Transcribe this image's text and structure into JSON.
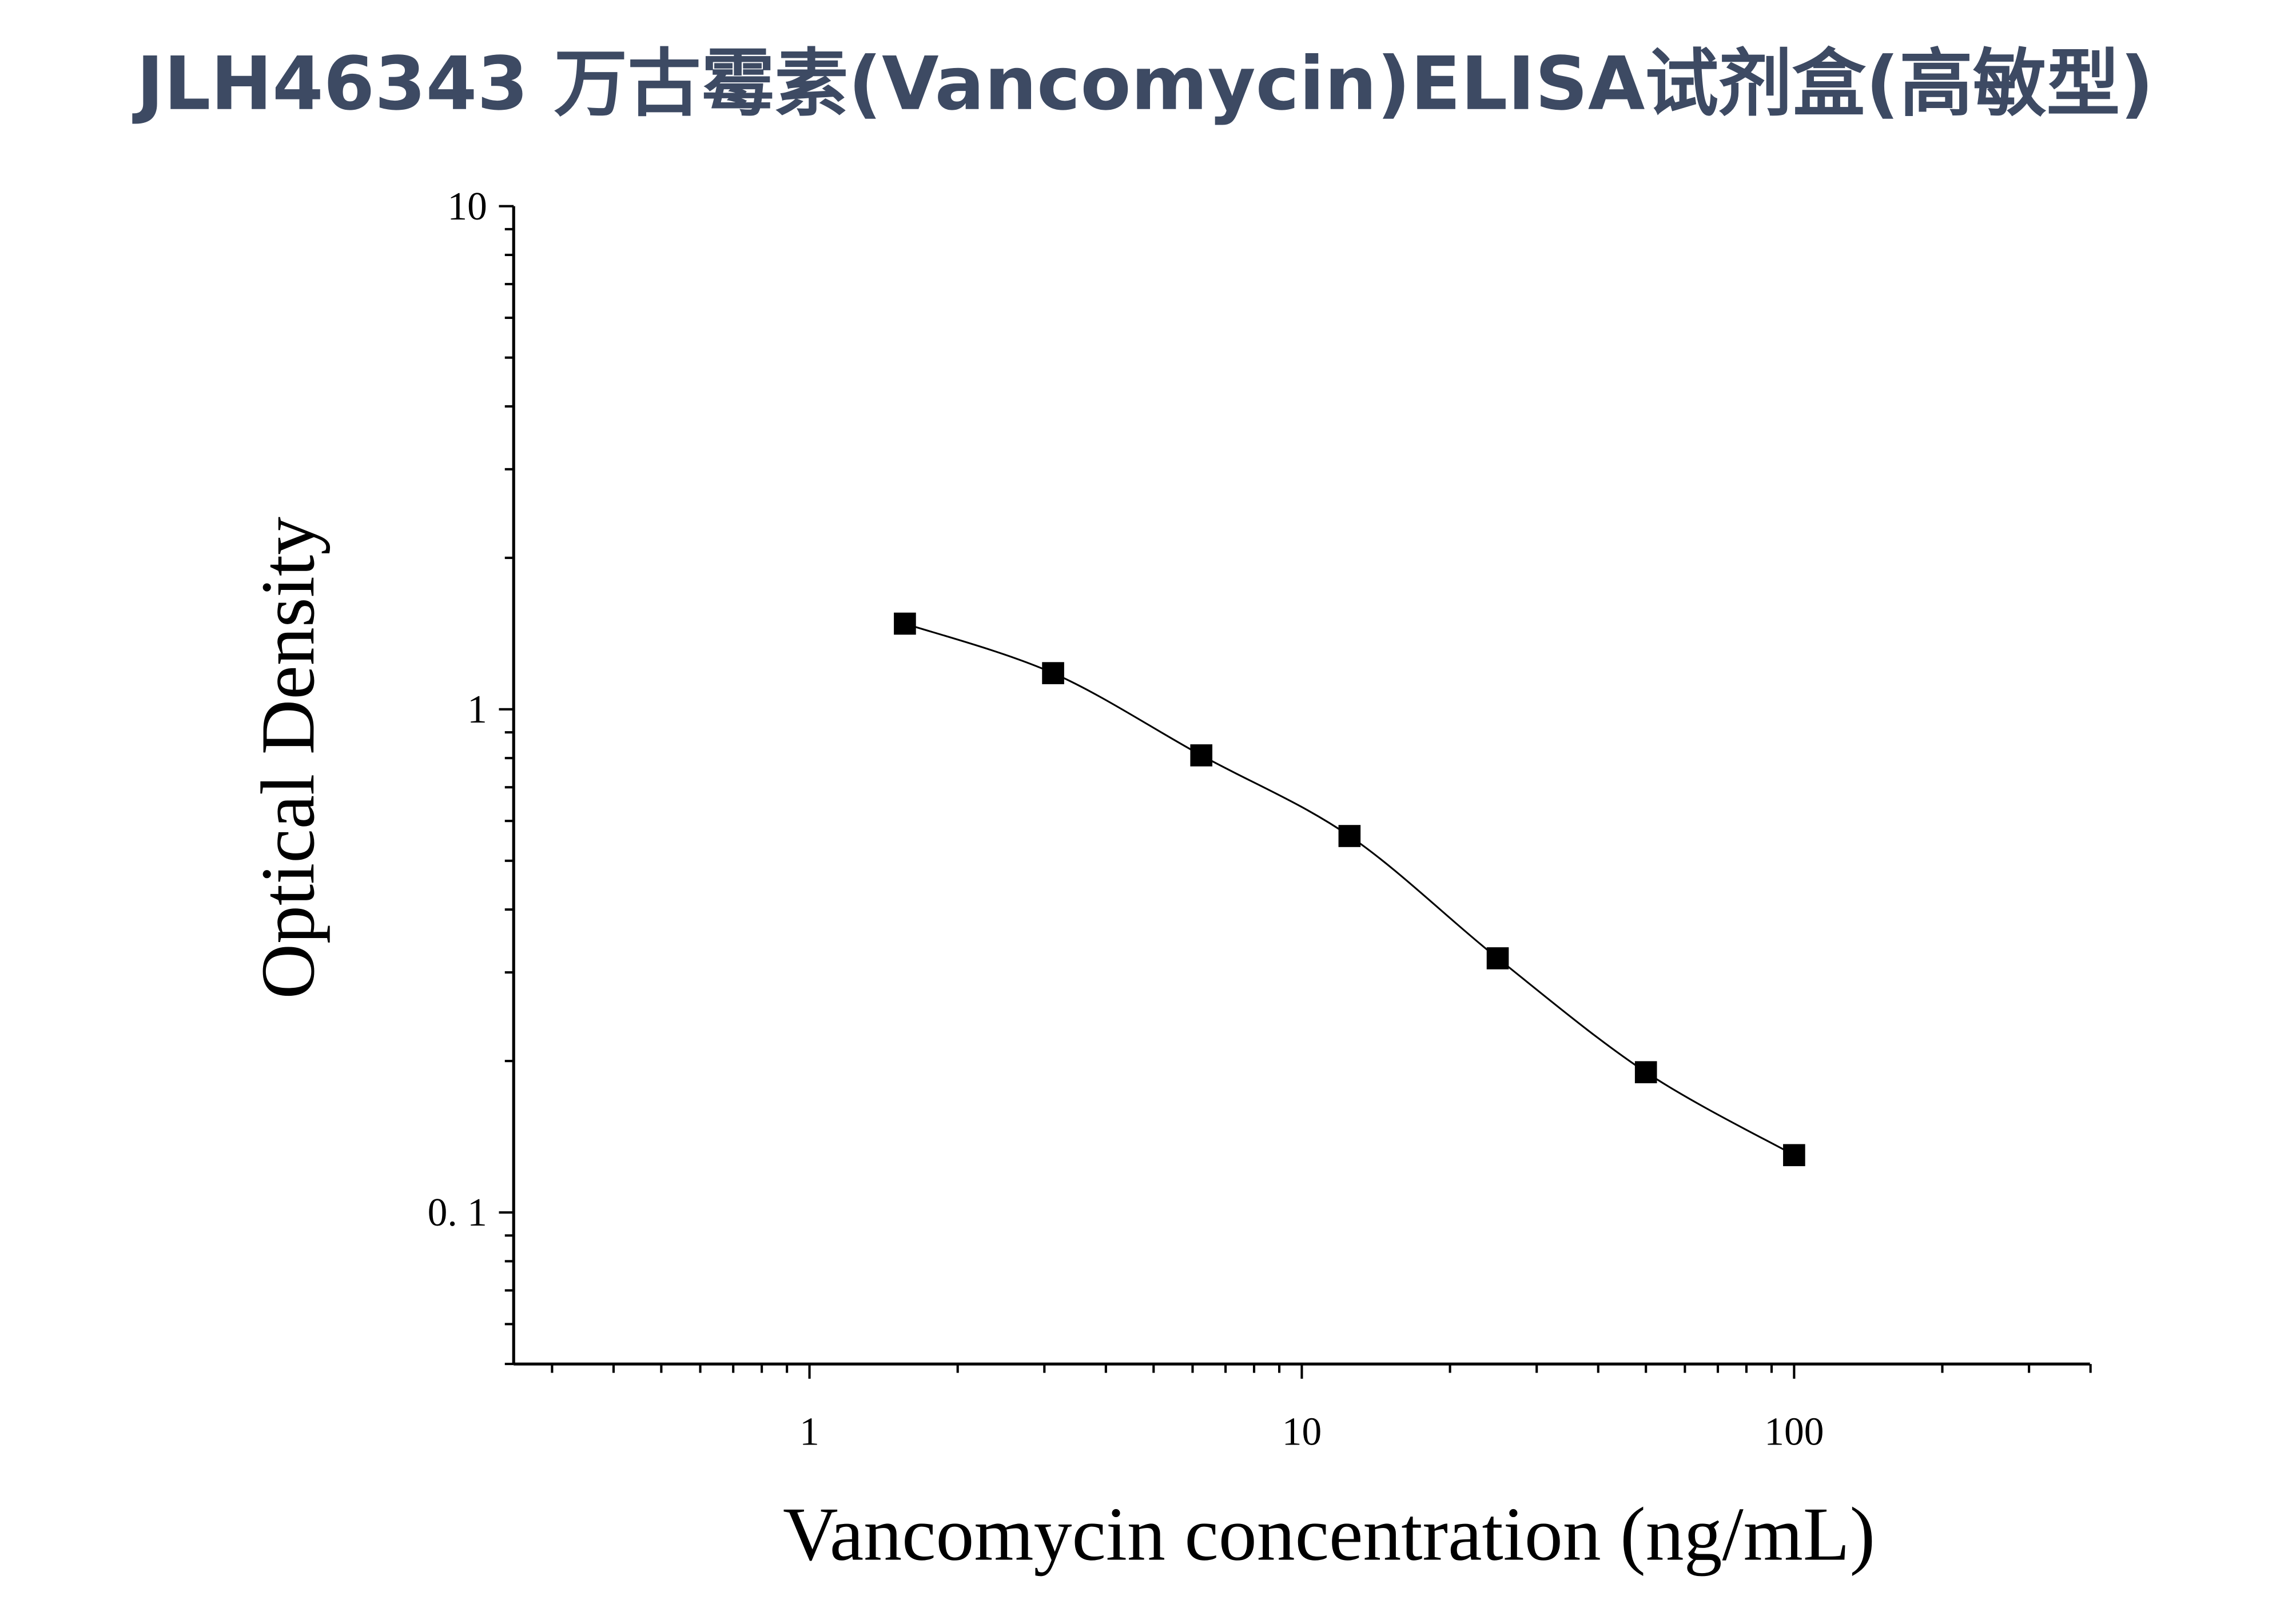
{
  "title": "JLH46343 万古霉素(Vancomycin)ELISA试剂盒(高敏型)",
  "colors": {
    "title": "#3d4a63",
    "marks": "#000000"
  },
  "chart_data": {
    "type": "scatter",
    "title": "JLH46343 万古霉素(Vancomycin)ELISA试剂盒(高敏型)",
    "xlabel": "Vancomycin concentration (ng/mL)",
    "ylabel": "Optical Density",
    "xscale": "log",
    "yscale": "log",
    "xlim": [
      0.25,
      400
    ],
    "ylim": [
      0.05,
      10
    ],
    "x_ticks": [
      {
        "value": 1,
        "label": "1"
      },
      {
        "value": 10,
        "label": "10"
      },
      {
        "value": 100,
        "label": "100"
      }
    ],
    "y_ticks": [
      {
        "value": 0.1,
        "label": "0. 1"
      },
      {
        "value": 1,
        "label": "1"
      },
      {
        "value": 10,
        "label": "10"
      }
    ],
    "grid": false,
    "marker": "square",
    "fit_curve": true,
    "x": [
      1.5625,
      3.125,
      6.25,
      12.5,
      25,
      50,
      100
    ],
    "y": [
      1.48,
      1.18,
      0.81,
      0.56,
      0.32,
      0.19,
      0.13
    ]
  }
}
